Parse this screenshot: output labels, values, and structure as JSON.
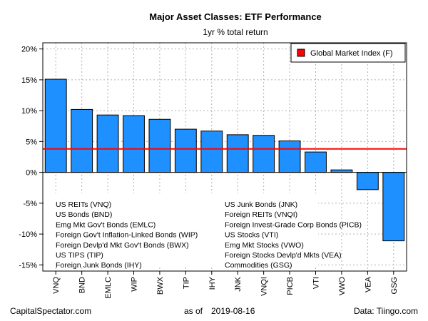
{
  "chart_data": {
    "type": "bar",
    "title": "Major Asset Classes: ETF Performance",
    "subtitle": "1yr % total return",
    "categories": [
      "VNQ",
      "BND",
      "EMLC",
      "WIP",
      "BWX",
      "TIP",
      "IHY",
      "JNK",
      "VNQI",
      "PICB",
      "VTI",
      "VWO",
      "VEA",
      "GSG"
    ],
    "values": [
      15.1,
      10.2,
      9.3,
      9.2,
      8.6,
      7.0,
      6.7,
      6.1,
      6.0,
      5.1,
      3.3,
      0.4,
      -2.8,
      -11.1
    ],
    "bar_color": "#1e90ff",
    "ylim": [
      -16,
      21
    ],
    "yticks": [
      -15,
      -10,
      -5,
      0,
      5,
      10,
      15,
      20
    ],
    "ytick_labels": [
      "-15%",
      "-10%",
      "-5%",
      "0%",
      "5%",
      "10%",
      "15%",
      "20%"
    ],
    "grid": true,
    "reference_line": {
      "name": "Global Market Index (F)",
      "value": 3.8,
      "color": "#ff0000"
    },
    "legend": {
      "placement": "top-right",
      "label": "Global Market Index (F)"
    },
    "ticker_notes": {
      "left": [
        "US REITs (VNQ)",
        "US Bonds (BND)",
        "Emg Mkt Gov't Bonds (EMLC)",
        "Foreign Gov't Inflation-Linked Bonds (WIP)",
        "Foreign Devlp'd Mkt Gov't Bonds (BWX)",
        "US TIPS (TIP)",
        "Foreign Junk Bonds (IHY)"
      ],
      "right": [
        "US Junk Bonds (JNK)",
        "Foreign REITs (VNQI)",
        "Foreign Invest-Grade Corp Bonds (PICB)",
        "US Stocks (VTI)",
        "Emg Mkt Stocks (VWO)",
        "Foreign Stocks Devlp'd Mkts (VEA)",
        "Commodities (GSG)"
      ]
    }
  },
  "footer": {
    "source_left": "CapitalSpectator.com",
    "as_of_label": "as of",
    "date": "2019-08-16",
    "source_right": "Data: Tiingo.com"
  }
}
